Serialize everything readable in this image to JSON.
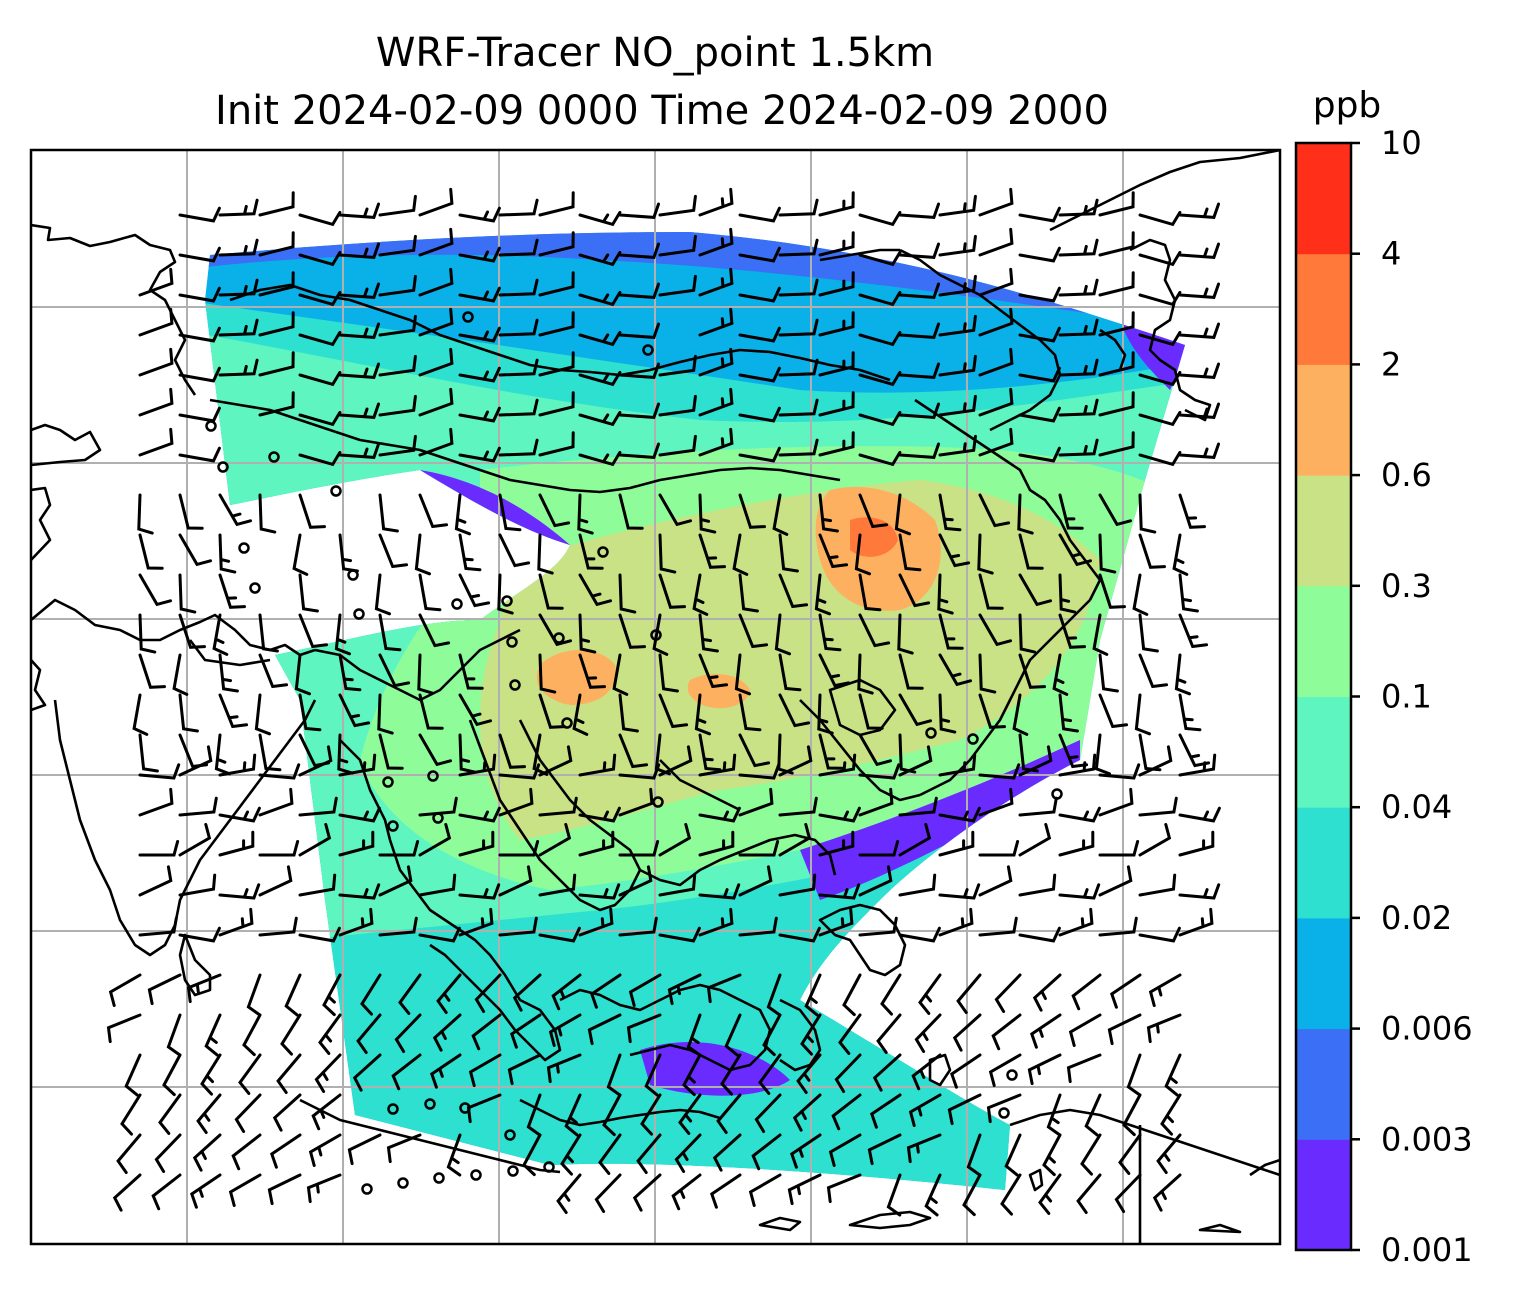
{
  "title": {
    "line1": "WRF-Tracer NO_point 1.5km",
    "line2": "Init 2024-02-09 0000 Time 2024-02-09 2000"
  },
  "colorbar": {
    "unit": "ppb",
    "levels": [
      "0.001",
      "0.003",
      "0.006",
      "0.02",
      "0.04",
      "0.1",
      "0.3",
      "0.6",
      "2",
      "4",
      "10"
    ],
    "colors": [
      "#6a2bff",
      "#3b6ff5",
      "#0ab0e8",
      "#2ee0d0",
      "#5ff5c0",
      "#8ffc9a",
      "#c9e285",
      "#fdb060",
      "#ff7a3a",
      "#ff2f1a"
    ]
  },
  "map": {
    "projection": "Lambert conformal",
    "gridlines": true,
    "wind_barbs": true
  }
}
